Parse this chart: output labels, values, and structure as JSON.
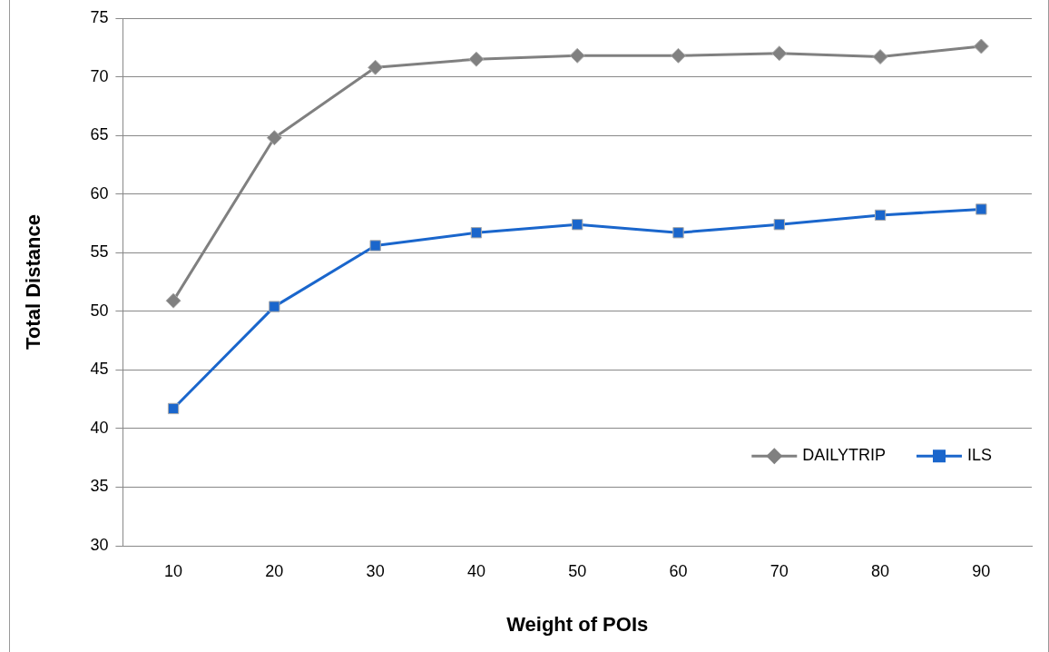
{
  "chart_data": {
    "type": "line",
    "xlabel": "Weight of POIs",
    "ylabel": "Total Distance",
    "categories": [
      "10",
      "20",
      "30",
      "40",
      "50",
      "60",
      "70",
      "80",
      "90"
    ],
    "series": [
      {
        "name": "DAILYTRIP",
        "color": "#808080",
        "marker": "diamond",
        "values": [
          50.9,
          64.8,
          70.8,
          71.5,
          71.8,
          71.8,
          72.0,
          71.7,
          72.6
        ]
      },
      {
        "name": "ILS",
        "color": "#1a66cc",
        "marker": "square",
        "values": [
          41.7,
          50.4,
          55.6,
          56.7,
          57.4,
          56.7,
          57.4,
          58.2,
          58.7
        ]
      }
    ],
    "ylim": [
      30,
      75
    ],
    "yticks": [
      30,
      35,
      40,
      45,
      50,
      55,
      60,
      65,
      70,
      75
    ],
    "grid": "y",
    "legend": "right",
    "line_style": "solid"
  }
}
